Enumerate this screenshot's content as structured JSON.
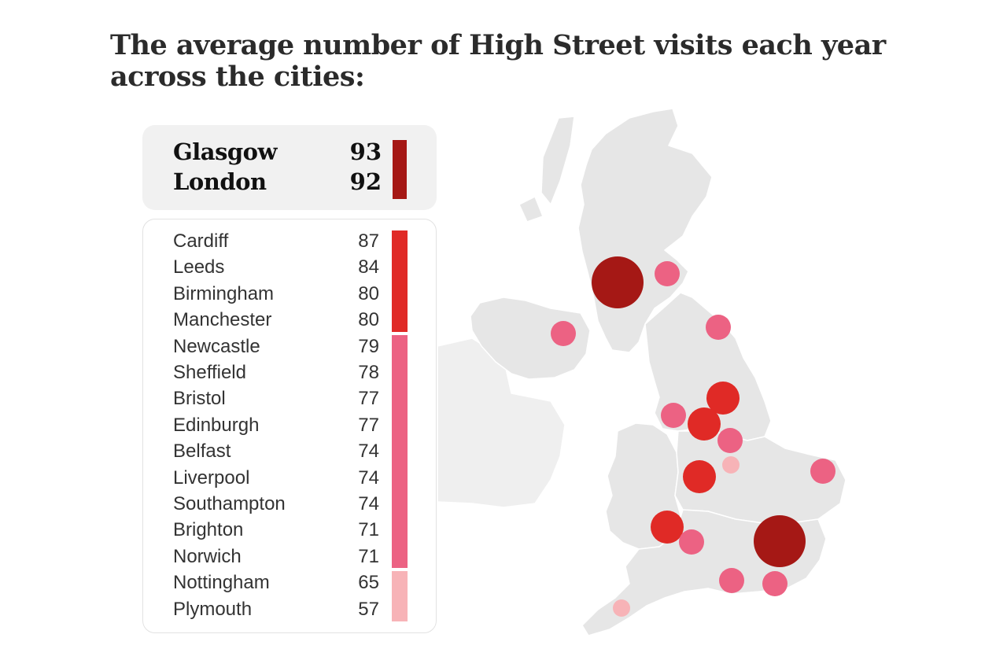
{
  "title": "The average number of High Street visits each year across the cities:",
  "colors": {
    "tier1": "#a51815",
    "tier2": "#e02a26",
    "tier3": "#ec6283",
    "tier4": "#f7b3b7",
    "land": "#e6e6e6",
    "land_border": "#ffffff"
  },
  "top_cities": [
    {
      "name": "Glasgow",
      "value": "93"
    },
    {
      "name": "London",
      "value": "92"
    }
  ],
  "cities": [
    {
      "name": "Cardiff",
      "value": "87",
      "tier": 2
    },
    {
      "name": "Leeds",
      "value": "84",
      "tier": 2
    },
    {
      "name": "Birmingham",
      "value": "80",
      "tier": 2
    },
    {
      "name": "Manchester",
      "value": "80",
      "tier": 2
    },
    {
      "name": "Newcastle",
      "value": "79",
      "tier": 3
    },
    {
      "name": "Sheffield",
      "value": "78",
      "tier": 3
    },
    {
      "name": "Bristol",
      "value": "77",
      "tier": 3
    },
    {
      "name": "Edinburgh",
      "value": "77",
      "tier": 3
    },
    {
      "name": "Belfast",
      "value": "74",
      "tier": 3
    },
    {
      "name": "Liverpool",
      "value": "74",
      "tier": 3
    },
    {
      "name": "Southampton",
      "value": "74",
      "tier": 3
    },
    {
      "name": "Brighton",
      "value": "71",
      "tier": 3
    },
    {
      "name": "Norwich",
      "value": "71",
      "tier": 3
    },
    {
      "name": "Nottingham",
      "value": "65",
      "tier": 4
    },
    {
      "name": "Plymouth",
      "value": "57",
      "tier": 4
    }
  ]
}
